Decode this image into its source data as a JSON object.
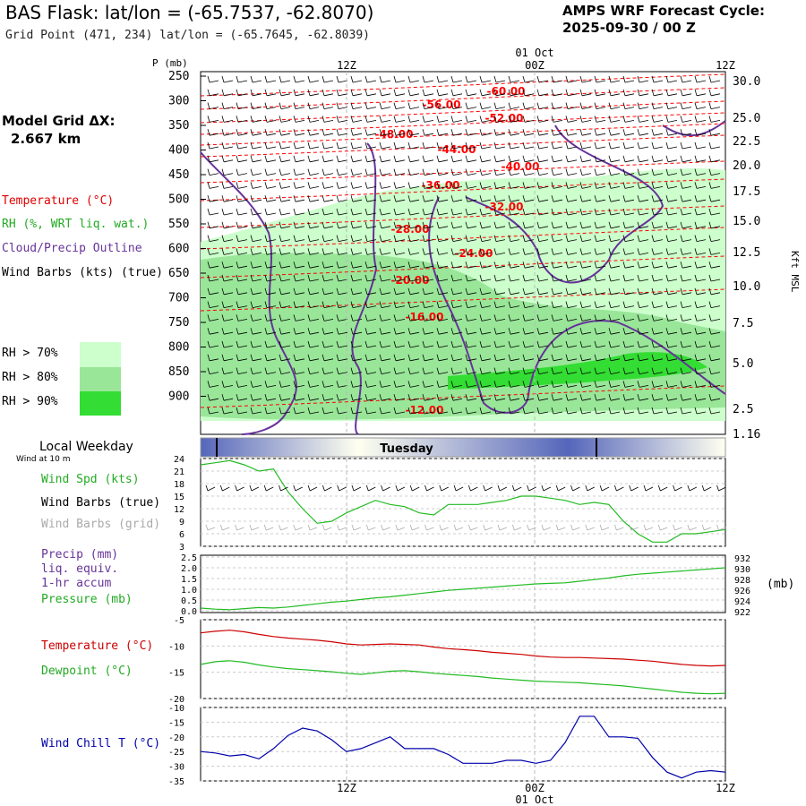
{
  "header": {
    "title": "BAS Flask:  lat/lon = (-65.7537, -62.8070)",
    "subtitle": "Grid Point (471, 234) lat/lon = (-65.7645, -62.8039)",
    "forecast_line1": "AMPS WRF Forecast Cycle:",
    "forecast_line2": "2025-09-30 / 00  Z",
    "grid_label": "Model Grid ΔX:",
    "grid_value": "2.667 km"
  },
  "legend": {
    "temperature": "Temperature (°C)",
    "rh": "RH (%, WRT liq. wat.)",
    "cloud": "Cloud/Precip Outline",
    "wind": "Wind Barbs (kts) (true)",
    "rh70": "RH > 70%",
    "rh80": "RH > 80%",
    "rh90": "RH > 90%",
    "colors": {
      "rh70": "#ccffcc",
      "rh80": "#99e699",
      "rh90": "#33dd33",
      "temp": "#ff0000",
      "cloud": "#663399",
      "wind_spd": "#22bb22",
      "wind_chill": "#0000aa",
      "dewpoint": "#22bb22"
    }
  },
  "time_axis": {
    "top_labels": [
      "12Z",
      "00Z",
      "12Z"
    ],
    "date_label": "01 Oct",
    "bottom_labels": [
      "12Z",
      "00Z",
      "12Z"
    ],
    "bottom_date": "01 Oct"
  },
  "weekday": {
    "label": "Local Weekday",
    "day": "Tuesday",
    "wind_note": "Wind at 10 m"
  },
  "chart_data": [
    {
      "type": "heatmap",
      "ylabel_left": "P (mb)",
      "ylabel_right": "Kft MSL",
      "pressure_ticks": [
        "250",
        "300",
        "350",
        "400",
        "450",
        "500",
        "550",
        "600",
        "650",
        "700",
        "750",
        "800",
        "850",
        "900"
      ],
      "height_ticks": [
        "30.0",
        "25.0",
        "22.5",
        "20.0",
        "17.5",
        "15.0",
        "12.5",
        "10.0",
        "7.5",
        "5.0",
        "2.5",
        "1.16"
      ],
      "temperature_contours": [
        "-60.00",
        "-56.00",
        "-52.00",
        "-48.00",
        "-44.00",
        "-40.00",
        "-36.00",
        "-32.00",
        "-28.00",
        "-24.00",
        "-20.00",
        "-16.00",
        "-12.00"
      ]
    },
    {
      "type": "line",
      "name": "Wind Spd (kts)",
      "labels": {
        "spd": "Wind Spd (kts)",
        "barbs_true": "Wind Barbs (true)",
        "barbs_grid": "Wind Barbs (grid)"
      },
      "yticks": [
        "24",
        "21",
        "18",
        "15",
        "12",
        "9",
        "6",
        "3"
      ],
      "ylim": [
        3,
        24
      ],
      "x": [
        0,
        1,
        2,
        3,
        4,
        5,
        6,
        7,
        8,
        9,
        10,
        11,
        12,
        13,
        14,
        15,
        16,
        17,
        18,
        19,
        20,
        21,
        22,
        23,
        24,
        25,
        26,
        27,
        28,
        29,
        30,
        31,
        32,
        33,
        34,
        35,
        36
      ],
      "values": [
        22.5,
        23,
        23.5,
        22.5,
        21,
        21.5,
        16,
        12,
        8.5,
        9,
        11,
        12.5,
        14,
        13,
        12.5,
        11,
        10.5,
        13,
        13,
        13,
        13.5,
        14,
        15,
        15,
        14.5,
        14,
        13,
        13.5,
        13,
        9,
        6,
        4,
        4,
        6,
        6,
        6.5,
        7
      ]
    },
    {
      "type": "line",
      "labels": {
        "precip": "Precip (mm)",
        "liq": "liq. equiv.",
        "accum": "1-hr accum",
        "pressure": "Pressure (mb)"
      },
      "y_left_ticks": [
        "2.5",
        "2.0",
        "1.5",
        "1.0",
        "0.5",
        "0.0"
      ],
      "y_right_ticks": [
        "932",
        "930",
        "928",
        "926",
        "924",
        "922"
      ],
      "ylabel_right": "(mb)",
      "pressure_series": [
        922.5,
        922.3,
        922.2,
        922.4,
        922.6,
        922.5,
        922.7,
        923.0,
        923.3,
        923.6,
        923.8,
        924.1,
        924.4,
        924.6,
        924.9,
        925.2,
        925.5,
        925.8,
        926.0,
        926.2,
        926.4,
        926.6,
        926.8,
        927.0,
        927.1,
        927.2,
        927.5,
        927.8,
        928.1,
        928.5,
        928.8,
        929.0,
        929.2,
        929.4,
        929.6,
        929.8,
        930.0
      ]
    },
    {
      "type": "line",
      "labels": {
        "temperature": "Temperature (°C)",
        "dewpoint": "Dewpoint (°C)"
      },
      "yticks": [
        "-5",
        "-10",
        "-15",
        "-20"
      ],
      "ylim": [
        -20,
        -5
      ],
      "temperature": [
        -7.5,
        -7.2,
        -7.0,
        -7.3,
        -7.8,
        -8.2,
        -8.5,
        -8.7,
        -8.9,
        -9.2,
        -9.6,
        -9.8,
        -9.7,
        -9.6,
        -9.7,
        -9.8,
        -10.2,
        -10.5,
        -10.7,
        -10.9,
        -11.2,
        -11.4,
        -11.6,
        -11.9,
        -12.1,
        -12.2,
        -12.2,
        -12.3,
        -12.4,
        -12.5,
        -12.7,
        -12.9,
        -13.2,
        -13.5,
        -13.7,
        -13.8,
        -13.7
      ],
      "dewpoint": [
        -13.5,
        -13.0,
        -12.8,
        -13.1,
        -13.6,
        -14.0,
        -14.3,
        -14.5,
        -14.7,
        -14.9,
        -15.2,
        -15.4,
        -15.1,
        -14.8,
        -14.7,
        -14.9,
        -15.2,
        -15.4,
        -15.6,
        -15.8,
        -16.1,
        -16.3,
        -16.5,
        -16.7,
        -16.8,
        -16.9,
        -17.0,
        -17.2,
        -17.4,
        -17.6,
        -17.9,
        -18.2,
        -18.5,
        -18.8,
        -19.0,
        -19.1,
        -19.0
      ]
    },
    {
      "type": "line",
      "name": "Wind Chill T (°C)",
      "labels": {
        "chill": "Wind Chill T (°C)"
      },
      "yticks": [
        "-10",
        "-15",
        "-20",
        "-25",
        "-30",
        "-35"
      ],
      "ylim": [
        -35,
        -10
      ],
      "values": [
        -25,
        -25.5,
        -26.5,
        -26,
        -27.5,
        -24,
        -19.5,
        -17,
        -18,
        -21,
        -25,
        -24,
        -22,
        -20,
        -24,
        -24,
        -24,
        -26,
        -29,
        -29,
        -29,
        -28,
        -28,
        -29,
        -28,
        -22,
        -13,
        -13,
        -20,
        -20,
        -20.5,
        -27,
        -32,
        -34,
        -32,
        -31.5,
        -32
      ]
    }
  ]
}
